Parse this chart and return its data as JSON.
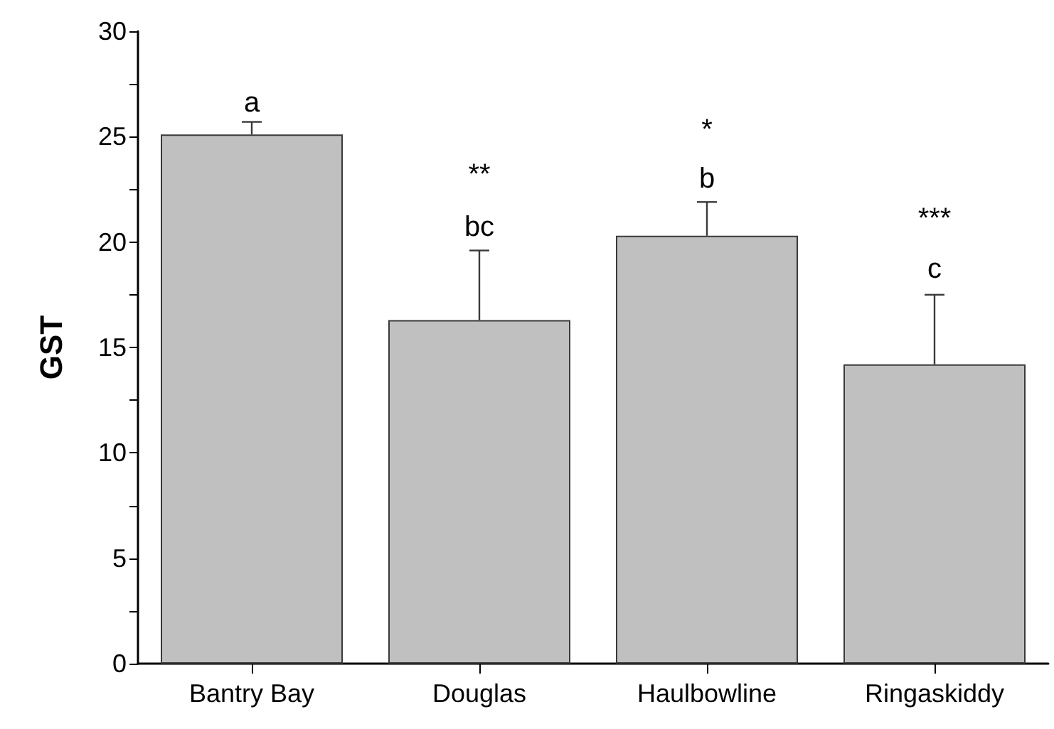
{
  "chart_data": {
    "type": "bar",
    "ylabel": "GST",
    "categories": [
      "Bantry Bay",
      "Douglas",
      "Haulbowline",
      "Ringaskiddy"
    ],
    "values": [
      25.1,
      16.3,
      20.3,
      14.2
    ],
    "errors": [
      [
        25.1,
        25.7
      ],
      [
        16.3,
        19.6
      ],
      [
        20.3,
        21.9
      ],
      [
        14.2,
        17.5
      ]
    ],
    "color": "#c0c0c0",
    "ylim": [
      0,
      30
    ],
    "yticks": [
      0,
      {
        "value": 2.5,
        "label": null
      },
      5,
      {
        "value": 7.5,
        "label": null
      },
      10,
      {
        "value": 12.5,
        "label": null
      },
      15,
      {
        "value": 17.5,
        "label": null
      },
      20,
      {
        "value": 22.5,
        "label": null
      },
      25,
      {
        "value": 27.5,
        "label": null
      },
      30
    ],
    "annotations": [
      "a",
      "**",
      "bc",
      "*",
      "b",
      "***",
      "c"
    ],
    "grid": false
  }
}
